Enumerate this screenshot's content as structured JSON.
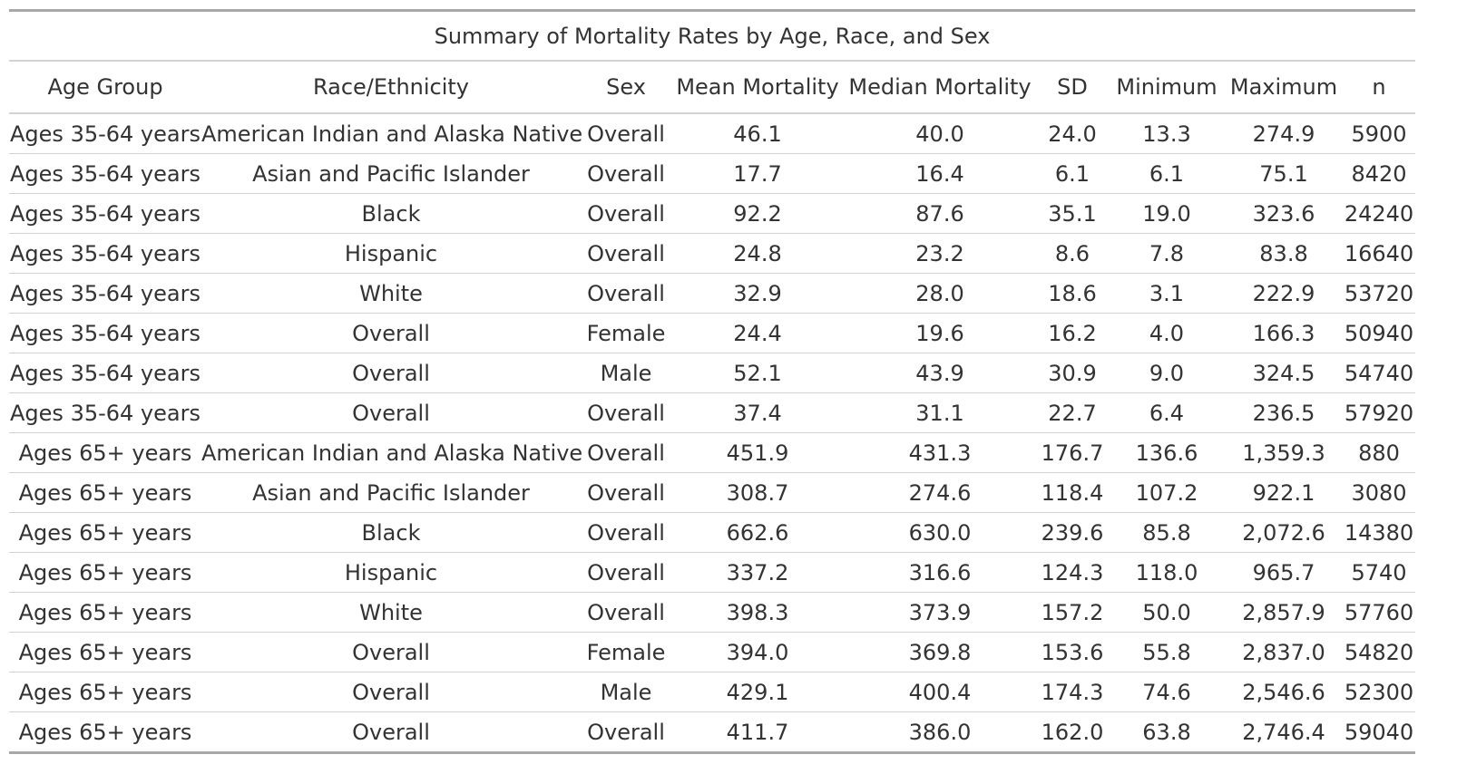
{
  "table": {
    "title": "Summary of Mortality Rates by Age, Race, and Sex",
    "columns": [
      "Age Group",
      "Race/Ethnicity",
      "Sex",
      "Mean Mortality",
      "Median Mortality",
      "SD",
      "Minimum",
      "Maximum",
      "n"
    ],
    "rows": [
      [
        "Ages 35-64 years",
        "American Indian and Alaska Native",
        "Overall",
        "46.1",
        "40.0",
        "24.0",
        "13.3",
        "274.9",
        "5900"
      ],
      [
        "Ages 35-64 years",
        "Asian and Pacific Islander",
        "Overall",
        "17.7",
        "16.4",
        "6.1",
        "6.1",
        "75.1",
        "8420"
      ],
      [
        "Ages 35-64 years",
        "Black",
        "Overall",
        "92.2",
        "87.6",
        "35.1",
        "19.0",
        "323.6",
        "24240"
      ],
      [
        "Ages 35-64 years",
        "Hispanic",
        "Overall",
        "24.8",
        "23.2",
        "8.6",
        "7.8",
        "83.8",
        "16640"
      ],
      [
        "Ages 35-64 years",
        "White",
        "Overall",
        "32.9",
        "28.0",
        "18.6",
        "3.1",
        "222.9",
        "53720"
      ],
      [
        "Ages 35-64 years",
        "Overall",
        "Female",
        "24.4",
        "19.6",
        "16.2",
        "4.0",
        "166.3",
        "50940"
      ],
      [
        "Ages 35-64 years",
        "Overall",
        "Male",
        "52.1",
        "43.9",
        "30.9",
        "9.0",
        "324.5",
        "54740"
      ],
      [
        "Ages 35-64 years",
        "Overall",
        "Overall",
        "37.4",
        "31.1",
        "22.7",
        "6.4",
        "236.5",
        "57920"
      ],
      [
        "Ages 65+ years",
        "American Indian and Alaska Native",
        "Overall",
        "451.9",
        "431.3",
        "176.7",
        "136.6",
        "1,359.3",
        "880"
      ],
      [
        "Ages 65+ years",
        "Asian and Pacific Islander",
        "Overall",
        "308.7",
        "274.6",
        "118.4",
        "107.2",
        "922.1",
        "3080"
      ],
      [
        "Ages 65+ years",
        "Black",
        "Overall",
        "662.6",
        "630.0",
        "239.6",
        "85.8",
        "2,072.6",
        "14380"
      ],
      [
        "Ages 65+ years",
        "Hispanic",
        "Overall",
        "337.2",
        "316.6",
        "124.3",
        "118.0",
        "965.7",
        "5740"
      ],
      [
        "Ages 65+ years",
        "White",
        "Overall",
        "398.3",
        "373.9",
        "157.2",
        "50.0",
        "2,857.9",
        "57760"
      ],
      [
        "Ages 65+ years",
        "Overall",
        "Female",
        "394.0",
        "369.8",
        "153.6",
        "55.8",
        "2,837.0",
        "54820"
      ],
      [
        "Ages 65+ years",
        "Overall",
        "Male",
        "429.1",
        "400.4",
        "174.3",
        "74.6",
        "2,546.6",
        "52300"
      ],
      [
        "Ages 65+ years",
        "Overall",
        "Overall",
        "411.7",
        "386.0",
        "162.0",
        "63.8",
        "2,746.4",
        "59040"
      ]
    ]
  },
  "colors": {
    "text": "#333333",
    "rule_heavy": "#a8a8a8",
    "rule_light": "#d3d3d3",
    "background": "#ffffff"
  }
}
